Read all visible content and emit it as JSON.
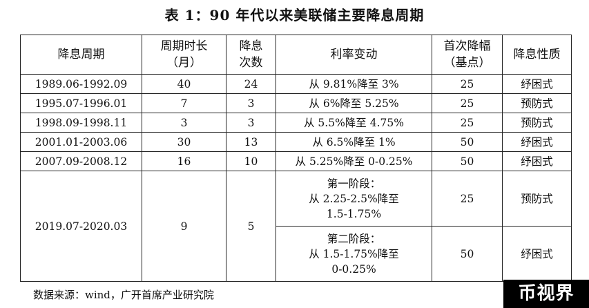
{
  "title": "表 1：90 年代以来美联储主要降息周期",
  "headers": {
    "period": "降息周期",
    "duration_l1": "周期时长",
    "duration_l2": "（月）",
    "count_l1": "降息",
    "count_l2": "次数",
    "rate_change": "利率变动",
    "first_cut_l1": "首次降幅",
    "first_cut_l2": "（基点）",
    "nature": "降息性质"
  },
  "rows": [
    {
      "period": "1989.06-1992.09",
      "duration": "40",
      "count": "24",
      "rate_change": "从 9.81%降至 3%",
      "first_cut": "25",
      "nature": "纾困式"
    },
    {
      "period": "1995.07-1996.01",
      "duration": "7",
      "count": "3",
      "rate_change": "从 6%降至 5.25%",
      "first_cut": "25",
      "nature": "预防式"
    },
    {
      "period": "1998.09-1998.11",
      "duration": "3",
      "count": "3",
      "rate_change": "从 5.5%降至 4.75%",
      "first_cut": "25",
      "nature": "预防式"
    },
    {
      "period": "2001.01-2003.06",
      "duration": "30",
      "count": "13",
      "rate_change": "从 6.5%降至 1%",
      "first_cut": "50",
      "nature": "纾困式"
    },
    {
      "period": "2007.09-2008.12",
      "duration": "16",
      "count": "10",
      "rate_change": "从 5.25%降至 0-0.25%",
      "first_cut": "50",
      "nature": "纾困式"
    }
  ],
  "last": {
    "period": "2019.07-2020.03",
    "duration": "9",
    "count": "5",
    "stage1": {
      "l1": "第一阶段：",
      "l2": "从 2.25-2.5%降至",
      "l3": "1.5-1.75%",
      "first_cut": "25",
      "nature": "预防式"
    },
    "stage2": {
      "l1": "第二阶段：",
      "l2": "从 1.5-1.75%降至",
      "l3": "0-0.25%",
      "first_cut": "50",
      "nature": "纾困式"
    }
  },
  "source": "数据来源：wind，广开首席产业研究院",
  "watermark": "币视界"
}
